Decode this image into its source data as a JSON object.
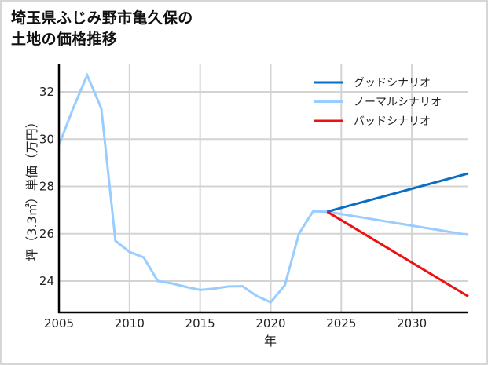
{
  "title": "埼玉県ふじみ野市亀久保の\n土地の価格推移",
  "chart_data": {
    "type": "line",
    "title": "埼玉県ふじみ野市亀久保の土地の価格推移",
    "xlabel": "年",
    "ylabel": "坪（3.3㎡）単価（万円）",
    "xlim": [
      2005,
      2034
    ],
    "ylim": [
      22.7,
      33.2
    ],
    "x_ticks": [
      2005,
      2010,
      2015,
      2020,
      2025,
      2030
    ],
    "y_ticks": [
      24,
      26,
      28,
      30,
      32
    ],
    "grid": true,
    "legend_position": "upper right",
    "series": [
      {
        "name": "グッドシナリオ",
        "color": "#0a6fc2",
        "x": [
          2024,
          2034
        ],
        "values": [
          26.93,
          28.55
        ]
      },
      {
        "name": "ノーマルシナリオ",
        "color": "#99ccff",
        "x": [
          2005,
          2006,
          2007,
          2008,
          2009,
          2010,
          2011,
          2012,
          2013,
          2014,
          2015,
          2016,
          2017,
          2018,
          2019,
          2020,
          2021,
          2022,
          2023,
          2024,
          2034
        ],
        "values": [
          29.75,
          31.3,
          32.7,
          31.3,
          25.7,
          25.23,
          25.0,
          24.0,
          23.9,
          23.75,
          23.62,
          23.68,
          23.77,
          23.78,
          23.37,
          23.1,
          23.82,
          26.0,
          26.95,
          26.93,
          25.95
        ]
      },
      {
        "name": "バッドシナリオ",
        "color": "#ee1111",
        "x": [
          2024,
          2034
        ],
        "values": [
          26.93,
          23.35
        ]
      }
    ]
  }
}
